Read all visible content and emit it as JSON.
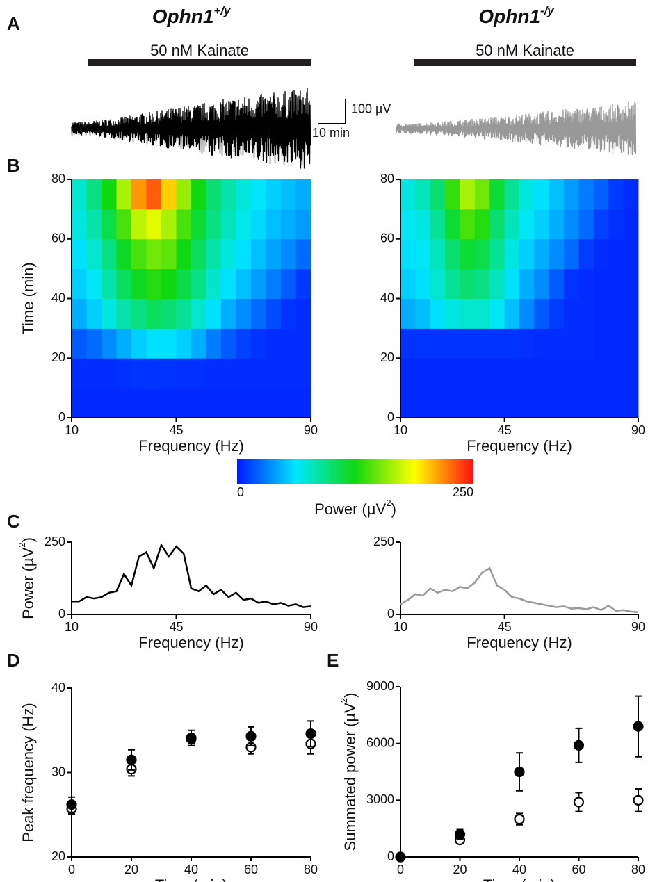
{
  "panel_labels": [
    "A",
    "B",
    "C",
    "D",
    "E"
  ],
  "chart_data": [
    {
      "type": "trace",
      "title": "Ophn1",
      "title_sup": "+/y",
      "annotation": "50 nM Kainate",
      "color": "#000000",
      "x": [
        0,
        10,
        20,
        30,
        40,
        50,
        60,
        70,
        80
      ],
      "values": [
        30,
        45,
        65,
        85,
        105,
        125,
        140,
        155,
        170
      ],
      "scalebar": {
        "y": 100,
        "y_label": "100 µV",
        "x": 10,
        "x_label": "10 min"
      }
    },
    {
      "type": "trace",
      "title": "Ophn1",
      "title_sup": "-/y",
      "annotation": "50 nM Kainate",
      "color": "#999999",
      "x": [
        0,
        10,
        20,
        30,
        40,
        50,
        60,
        70,
        80
      ],
      "values": [
        22,
        30,
        40,
        50,
        62,
        75,
        88,
        100,
        115
      ]
    },
    {
      "type": "heatmap",
      "xlabel": "Frequency (Hz)",
      "ylabel": "Time (min)",
      "xlim": [
        10,
        90
      ],
      "xticks": [
        10,
        45,
        90
      ],
      "ylim": [
        0,
        80
      ],
      "yticks": [
        0,
        20,
        40,
        60,
        80
      ],
      "x": [
        12.5,
        17.5,
        22.5,
        27.5,
        32.5,
        37.5,
        42.5,
        47.5,
        52.5,
        57.5,
        62.5,
        67.5,
        72.5,
        77.5,
        82.5,
        87.5
      ],
      "y": [
        5,
        15,
        25,
        35,
        45,
        55,
        65,
        75
      ],
      "values": [
        [
          5,
          5,
          5,
          5,
          5,
          5,
          5,
          5,
          5,
          5,
          5,
          5,
          5,
          5,
          5,
          5
        ],
        [
          6,
          6,
          6,
          7,
          8,
          8,
          8,
          7,
          7,
          6,
          6,
          6,
          6,
          6,
          6,
          6
        ],
        [
          20,
          25,
          35,
          45,
          55,
          60,
          60,
          55,
          45,
          30,
          20,
          12,
          8,
          6,
          6,
          6
        ],
        [
          45,
          55,
          70,
          85,
          95,
          105,
          100,
          90,
          75,
          60,
          45,
          35,
          25,
          15,
          8,
          6
        ],
        [
          55,
          65,
          85,
          105,
          120,
          130,
          125,
          110,
          95,
          75,
          60,
          50,
          40,
          30,
          20,
          10
        ],
        [
          60,
          75,
          95,
          120,
          140,
          150,
          145,
          125,
          105,
          85,
          70,
          60,
          50,
          42,
          35,
          25
        ],
        [
          70,
          85,
          110,
          140,
          170,
          180,
          165,
          140,
          115,
          95,
          80,
          68,
          58,
          50,
          45,
          40
        ],
        [
          75,
          95,
          125,
          165,
          215,
          230,
          200,
          160,
          125,
          100,
          85,
          72,
          62,
          55,
          50,
          45
        ]
      ]
    },
    {
      "type": "heatmap",
      "xlabel": "Frequency (Hz)",
      "xlim": [
        10,
        90
      ],
      "xticks": [
        10,
        45,
        90
      ],
      "ylim": [
        0,
        80
      ],
      "yticks": [
        0,
        20,
        40,
        60,
        80
      ],
      "x": [
        12.5,
        17.5,
        22.5,
        27.5,
        32.5,
        37.5,
        42.5,
        47.5,
        52.5,
        57.5,
        62.5,
        67.5,
        72.5,
        77.5,
        82.5,
        87.5
      ],
      "y": [
        5,
        15,
        25,
        35,
        45,
        55,
        65,
        75
      ],
      "values": [
        [
          5,
          5,
          5,
          5,
          5,
          5,
          5,
          5,
          5,
          5,
          5,
          5,
          5,
          5,
          5,
          5
        ],
        [
          5,
          5,
          5,
          5,
          5,
          5,
          5,
          5,
          5,
          5,
          5,
          5,
          5,
          5,
          5,
          5
        ],
        [
          8,
          8,
          8,
          8,
          8,
          8,
          8,
          8,
          7,
          6,
          6,
          6,
          6,
          5,
          5,
          5
        ],
        [
          45,
          50,
          60,
          70,
          75,
          75,
          65,
          50,
          35,
          20,
          10,
          6,
          6,
          5,
          5,
          5
        ],
        [
          55,
          60,
          75,
          90,
          100,
          95,
          80,
          60,
          45,
          35,
          20,
          8,
          6,
          5,
          5,
          5
        ],
        [
          60,
          65,
          80,
          100,
          115,
          110,
          90,
          70,
          55,
          45,
          35,
          25,
          10,
          6,
          5,
          5
        ],
        [
          65,
          70,
          90,
          115,
          140,
          130,
          100,
          80,
          65,
          55,
          45,
          35,
          25,
          12,
          7,
          5
        ],
        [
          70,
          80,
          100,
          135,
          165,
          150,
          115,
          90,
          70,
          60,
          50,
          40,
          30,
          22,
          10,
          6
        ]
      ]
    },
    {
      "type": "colorbar",
      "clim": [
        0,
        250
      ],
      "ticks": [
        0,
        250
      ],
      "label": "Power (µV",
      "label_sup": "2",
      "label_end": ")",
      "colormap": [
        "#0018ff",
        "#00e8ff",
        "#10d810",
        "#ffff00",
        "#ff1010"
      ]
    },
    {
      "type": "line",
      "xlabel": "Frequency (Hz)",
      "ylabel": "Power (µV",
      "ylabel_sup": "2",
      "ylabel_end": ")",
      "color": "#000000",
      "xlim": [
        10,
        90
      ],
      "xticks": [
        10,
        45,
        90
      ],
      "ylim": [
        0,
        250
      ],
      "yticks": [
        0,
        250
      ],
      "x": [
        10,
        12.5,
        15,
        17.5,
        20,
        22.5,
        25,
        27.5,
        30,
        32.5,
        35,
        37.5,
        40,
        42.5,
        45,
        47.5,
        50,
        52.5,
        55,
        57.5,
        60,
        62.5,
        65,
        67.5,
        70,
        72.5,
        75,
        77.5,
        80,
        82.5,
        85,
        87.5,
        90
      ],
      "values": [
        45,
        45,
        60,
        55,
        60,
        75,
        80,
        140,
        100,
        200,
        215,
        160,
        240,
        200,
        235,
        210,
        90,
        80,
        100,
        70,
        85,
        60,
        75,
        50,
        55,
        40,
        45,
        35,
        40,
        30,
        35,
        25,
        28
      ]
    },
    {
      "type": "line",
      "xlabel": "Frequency (Hz)",
      "color": "#999999",
      "xlim": [
        10,
        90
      ],
      "xticks": [
        10,
        45,
        90
      ],
      "ylim": [
        0,
        250
      ],
      "yticks": [
        0,
        250
      ],
      "x": [
        10,
        12.5,
        15,
        17.5,
        20,
        22.5,
        25,
        27.5,
        30,
        32.5,
        35,
        37.5,
        40,
        42.5,
        45,
        47.5,
        50,
        52.5,
        55,
        57.5,
        60,
        62.5,
        65,
        67.5,
        70,
        72.5,
        75,
        77.5,
        80,
        82.5,
        85,
        87.5,
        90
      ],
      "values": [
        35,
        50,
        70,
        65,
        90,
        75,
        85,
        80,
        95,
        90,
        110,
        145,
        160,
        100,
        85,
        60,
        55,
        45,
        40,
        35,
        30,
        25,
        28,
        20,
        22,
        18,
        25,
        15,
        30,
        12,
        15,
        10,
        8
      ]
    },
    {
      "type": "errorbar",
      "xlabel": "Time (min)",
      "ylabel": "Peak frequency (Hz)",
      "xlim": [
        0,
        80
      ],
      "xticks": [
        0,
        20,
        40,
        60,
        80
      ],
      "ylim": [
        20,
        40
      ],
      "yticks": [
        20,
        30,
        40
      ],
      "x": [
        0,
        20,
        40,
        60,
        80
      ],
      "series": [
        {
          "color": "#000000",
          "marker_fill": "#ffffff",
          "values": [
            25.7,
            30.4,
            34.0,
            33.0,
            33.4
          ],
          "errors": [
            0.6,
            0.8,
            0.5,
            0.8,
            1.2
          ]
        },
        {
          "color": "#000000",
          "marker_fill": "#000000",
          "values": [
            26.2,
            31.5,
            34.1,
            34.3,
            34.6
          ],
          "errors": [
            0.9,
            1.2,
            0.9,
            1.1,
            1.5
          ]
        }
      ]
    },
    {
      "type": "errorbar",
      "xlabel": "Time (min)",
      "ylabel": "Summated power (µV",
      "ylabel_sup": "2",
      "ylabel_end": ")",
      "xlim": [
        0,
        80
      ],
      "xticks": [
        0,
        20,
        40,
        60,
        80
      ],
      "ylim": [
        0,
        9000
      ],
      "yticks": [
        0,
        3000,
        6000,
        9000
      ],
      "x": [
        0,
        20,
        40,
        60,
        80
      ],
      "series": [
        {
          "color": "#000000",
          "marker_fill": "#ffffff",
          "values": [
            0,
            900,
            2000,
            2900,
            3000
          ],
          "errors": [
            0,
            200,
            300,
            500,
            600
          ]
        },
        {
          "color": "#000000",
          "marker_fill": "#000000",
          "values": [
            0,
            1200,
            4500,
            5900,
            6900
          ],
          "errors": [
            0,
            250,
            1000,
            900,
            1600
          ]
        }
      ]
    }
  ]
}
